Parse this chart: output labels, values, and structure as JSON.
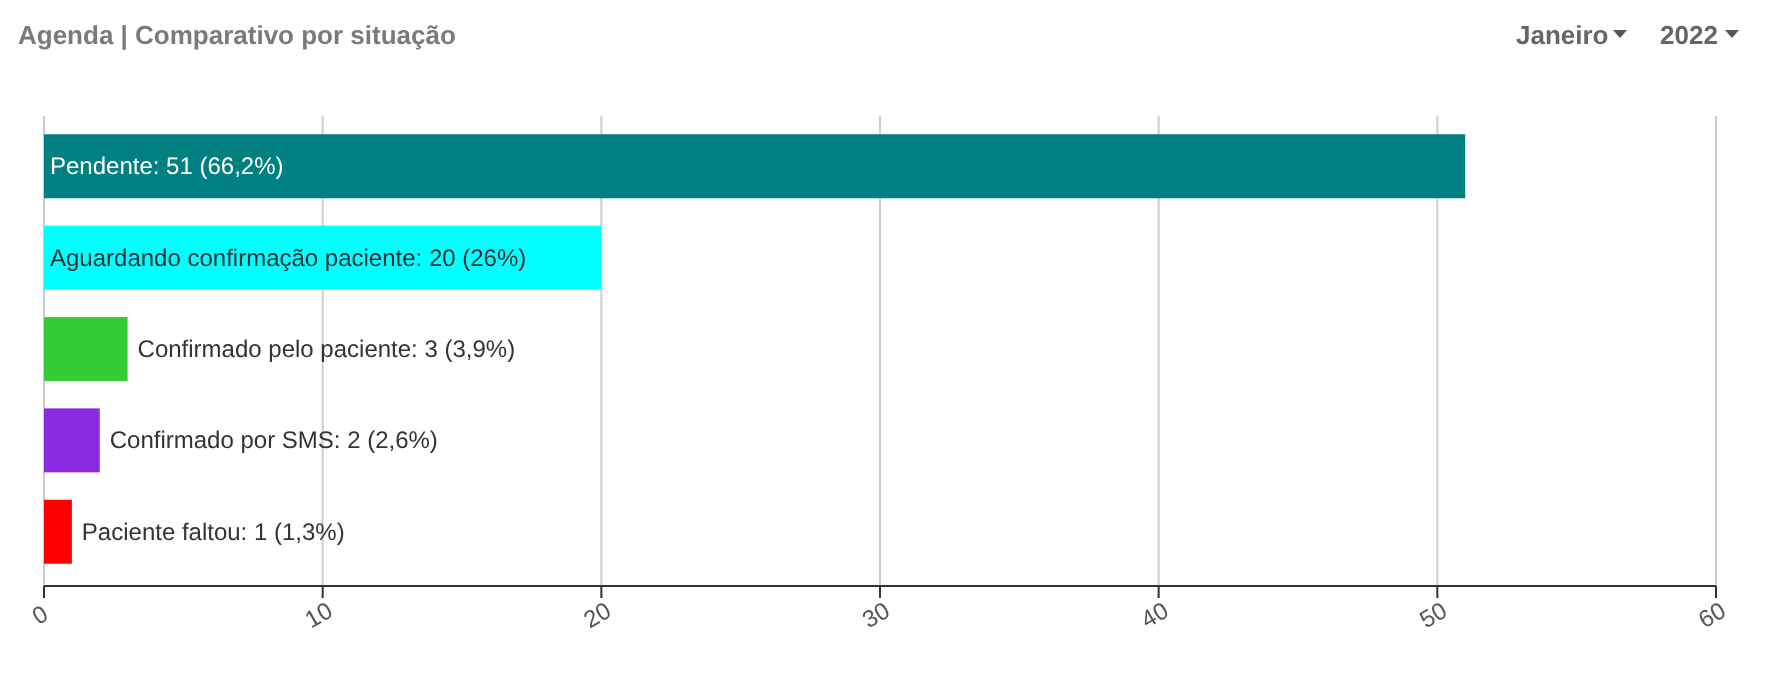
{
  "chart_data": {
    "type": "bar",
    "orientation": "horizontal",
    "title": "Agenda | Comparativo por situação",
    "categories": [
      null,
      null,
      null,
      null,
      null
    ],
    "values": [
      51,
      20,
      3,
      2,
      1
    ],
    "value_labels": [
      "Pendente: 51 (66,2%)",
      "Aguardando confirmação paciente: 20 (26%)",
      "Confirmado pelo paciente: 3 (3,9%)",
      "Confirmado por SMS: 2 (2,6%)",
      "Paciente faltou: 1 (1,3%)"
    ],
    "colors": [
      "#008080",
      "#00ffff",
      "#33cc33",
      "#8a2be2",
      "#ff0000"
    ],
    "xlim": [
      0,
      60
    ],
    "xticks": [
      0,
      10,
      20,
      30,
      40,
      50,
      60
    ],
    "grid": "x",
    "annotations": [
      "Janeiro",
      "2022"
    ]
  }
}
